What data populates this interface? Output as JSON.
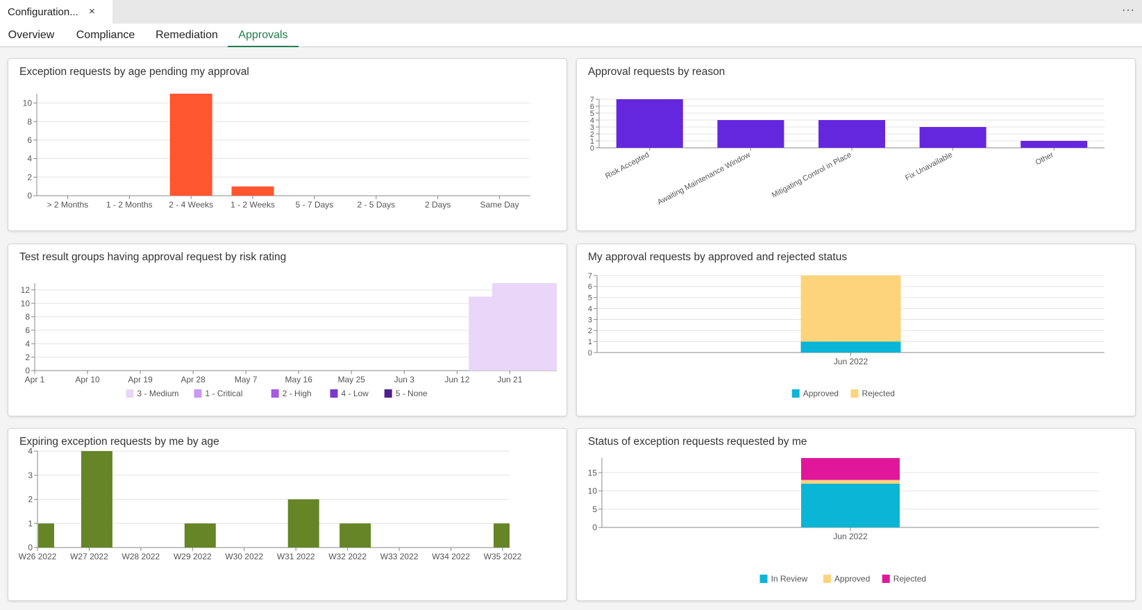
{
  "window": {
    "tab_title": "Configuration...",
    "close_glyph": "×",
    "more_glyph": "···"
  },
  "nav": {
    "tabs": [
      {
        "label": "Overview"
      },
      {
        "label": "Compliance"
      },
      {
        "label": "Remediation"
      },
      {
        "label": "Approvals"
      }
    ],
    "active": "Approvals"
  },
  "cards": [
    {
      "title": "Exception requests by age pending my approval",
      "chart_data": {
        "type": "bar",
        "categories": [
          "> 2 Months",
          "1 - 2 Months",
          "2 - 4 Weeks",
          "1 - 2 Weeks",
          "5 - 7 Days",
          "2 - 5 Days",
          "2 Days",
          "Same Day"
        ],
        "values": [
          0,
          0,
          11,
          1,
          0,
          0,
          0,
          0
        ],
        "ylim": [
          0,
          11
        ],
        "yticks": [
          0,
          2,
          4,
          6,
          8,
          10
        ],
        "color": "#ff5630",
        "grid": true
      }
    },
    {
      "title": "Approval requests by reason",
      "chart_data": {
        "type": "bar",
        "categories": [
          "Risk Accepted",
          "Awaiting Maintenance Window",
          "Mitigating Control in Place",
          "Fix Unavailable",
          "Other"
        ],
        "values": [
          7,
          4,
          4,
          3,
          1
        ],
        "ylim": [
          0,
          7
        ],
        "yticks": [
          0,
          1,
          2,
          3,
          4,
          5,
          6,
          7
        ],
        "color": "#6527de",
        "grid": true,
        "rotated_labels": true
      }
    },
    {
      "title": "Test result groups having approval request by risk rating",
      "chart_data": {
        "type": "area",
        "x": [
          "Apr 1",
          "Apr 10",
          "Apr 19",
          "Apr 28",
          "May 7",
          "May 16",
          "May 25",
          "Jun 3",
          "Jun 12",
          "Jun 21"
        ],
        "xlim": [
          "Apr 1",
          "Jun 29"
        ],
        "series": [
          {
            "name": "3 - Medium",
            "color": "#e9d6f8",
            "points": [
              [
                "Jun 14",
                11
              ],
              [
                "Jun 18",
                11
              ],
              [
                "Jun 18",
                13
              ],
              [
                "Jun 29",
                13
              ]
            ]
          },
          {
            "name": "1 - Critical",
            "color": "#c89af0",
            "points": []
          },
          {
            "name": "2 - High",
            "color": "#a45ae3",
            "points": []
          },
          {
            "name": "4 - Low",
            "color": "#7b3ac9",
            "points": []
          },
          {
            "name": "5 - None",
            "color": "#4f1f8f",
            "points": []
          }
        ],
        "ylim": [
          0,
          13
        ],
        "yticks": [
          0,
          2,
          4,
          6,
          8,
          10,
          12
        ],
        "grid": true,
        "legend": "bottom"
      }
    },
    {
      "title": "My approval requests by approved and rejected status",
      "chart_data": {
        "type": "bar",
        "stacked": true,
        "categories": [
          "Jun 2022"
        ],
        "series": [
          {
            "name": "Approved",
            "color": "#0bb5d6",
            "values": [
              1
            ]
          },
          {
            "name": "Rejected",
            "color": "#fdd47b",
            "values": [
              6
            ]
          }
        ],
        "ylim": [
          0,
          7
        ],
        "yticks": [
          0,
          1,
          2,
          3,
          4,
          5,
          6,
          7
        ],
        "grid": true,
        "legend": "bottom"
      }
    },
    {
      "title": "Expiring exception requests by me by age",
      "chart_data": {
        "type": "bar",
        "categories": [
          "W26 2022",
          "W27 2022",
          "W28 2022",
          "W29 2022",
          "W30 2022",
          "W31 2022",
          "W32 2022",
          "W33 2022",
          "W34 2022",
          "W35 2022"
        ],
        "values": [
          1,
          4,
          0,
          1,
          0,
          2,
          1,
          0,
          0,
          1
        ],
        "ylim": [
          0,
          4
        ],
        "yticks": [
          0,
          1,
          2,
          3,
          4
        ],
        "color": "#658526",
        "grid": true
      }
    },
    {
      "title": "Status of exception requests requested by me",
      "chart_data": {
        "type": "bar",
        "stacked": true,
        "categories": [
          "Jun 2022"
        ],
        "series": [
          {
            "name": "In Review",
            "color": "#0bb5d6",
            "values": [
              12
            ]
          },
          {
            "name": "Approved",
            "color": "#fdd47b",
            "values": [
              1
            ]
          },
          {
            "name": "Rejected",
            "color": "#e0179b",
            "values": [
              6
            ]
          }
        ],
        "ylim": [
          0,
          19
        ],
        "yticks": [
          0,
          5,
          10,
          15
        ],
        "grid": true,
        "legend": "bottom"
      }
    }
  ]
}
